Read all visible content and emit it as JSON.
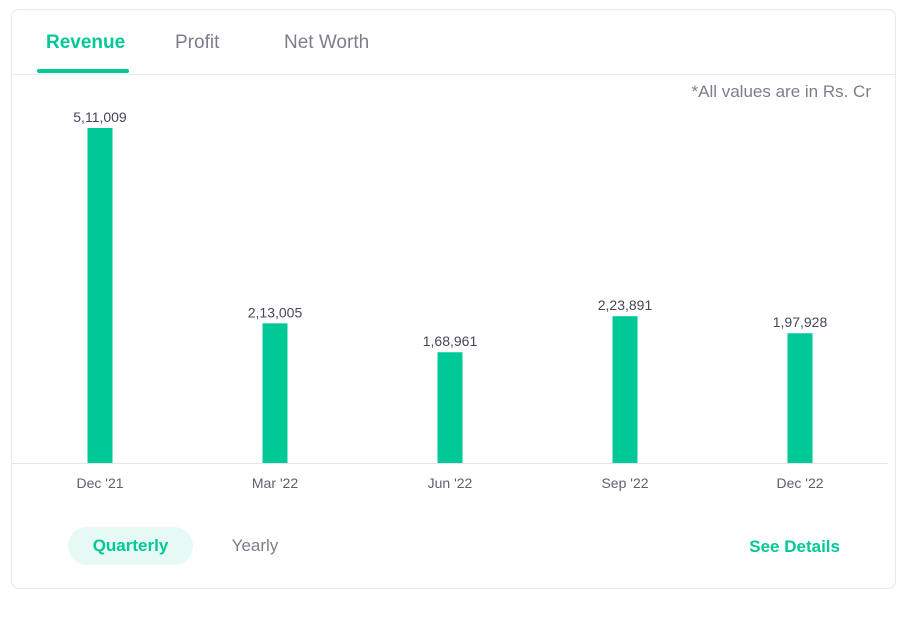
{
  "tabs": [
    {
      "label": "Revenue"
    },
    {
      "label": "Profit"
    },
    {
      "label": "Net Worth"
    }
  ],
  "note": "*All values are in Rs. Cr",
  "chart_data": {
    "type": "bar",
    "categories": [
      "Dec '21",
      "Mar '22",
      "Jun '22",
      "Sep '22",
      "Dec '22"
    ],
    "values": [
      511009,
      213005,
      168961,
      223891,
      197928
    ],
    "value_labels": [
      "5,11,009",
      "2,13,005",
      "1,68,961",
      "2,23,891",
      "1,97,928"
    ],
    "title": "",
    "xlabel": "",
    "ylabel": "",
    "ylim": [
      0,
      511009
    ],
    "grid": false,
    "bar_color": "#00c896"
  },
  "toggles": {
    "quarterly": "Quarterly",
    "yearly": "Yearly"
  },
  "see_details": "See Details",
  "colors": {
    "accent": "#00c896",
    "muted_text": "#7c7e8c"
  }
}
